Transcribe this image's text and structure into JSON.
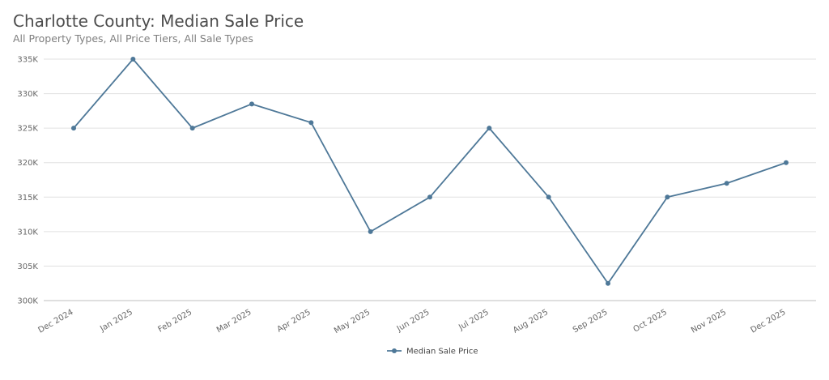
{
  "chart_data": {
    "type": "line",
    "title": "Charlotte County: Median Sale Price",
    "subtitle": "All Property Types, All Price Tiers, All Sale Types",
    "xlabel": "",
    "ylabel": "",
    "categories": [
      "Dec 2024",
      "Jan 2025",
      "Feb 2025",
      "Mar 2025",
      "Apr 2025",
      "May 2025",
      "Jun 2025",
      "Jul 2025",
      "Aug 2025",
      "Sep 2025",
      "Oct 2025",
      "Nov 2025",
      "Dec 2025"
    ],
    "series": [
      {
        "name": "Median Sale Price",
        "color": "#4e7898",
        "values": [
          325000,
          335000,
          325000,
          328500,
          325800,
          310000,
          315000,
          325000,
          315000,
          302500,
          315000,
          317000,
          320000
        ]
      }
    ],
    "ylim": [
      300000,
      335000
    ],
    "yticks": [
      300000,
      305000,
      310000,
      315000,
      320000,
      325000,
      330000,
      335000
    ],
    "ytick_labels": [
      "300K",
      "305K",
      "310K",
      "315K",
      "320K",
      "325K",
      "330K",
      "335K"
    ],
    "grid": true,
    "legend": "bottom-center"
  }
}
